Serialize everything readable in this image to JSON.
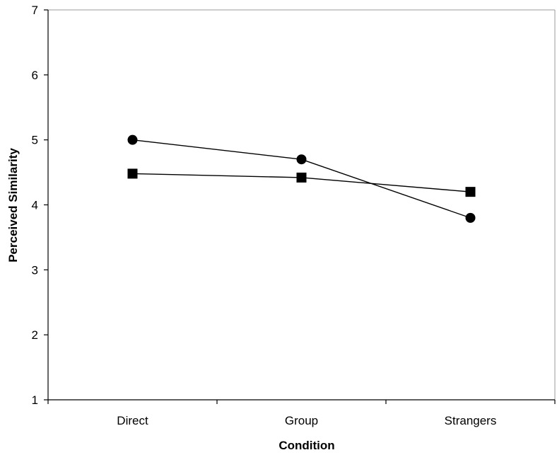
{
  "chart_data": {
    "type": "line",
    "title": "",
    "xlabel": "Condition",
    "ylabel": "Perceived Similarity",
    "categories": [
      "Direct",
      "Group",
      "Strangers"
    ],
    "ylim": [
      1,
      7
    ],
    "yticks": [
      "1",
      "2",
      "3",
      "4",
      "5",
      "6",
      "7"
    ],
    "grid": false,
    "legend": "none",
    "series": [
      {
        "marker": "circle",
        "color": "#000000",
        "values": [
          5.0,
          4.7,
          3.8
        ]
      },
      {
        "marker": "square",
        "color": "#000000",
        "values": [
          4.48,
          4.42,
          4.2
        ]
      }
    ]
  }
}
